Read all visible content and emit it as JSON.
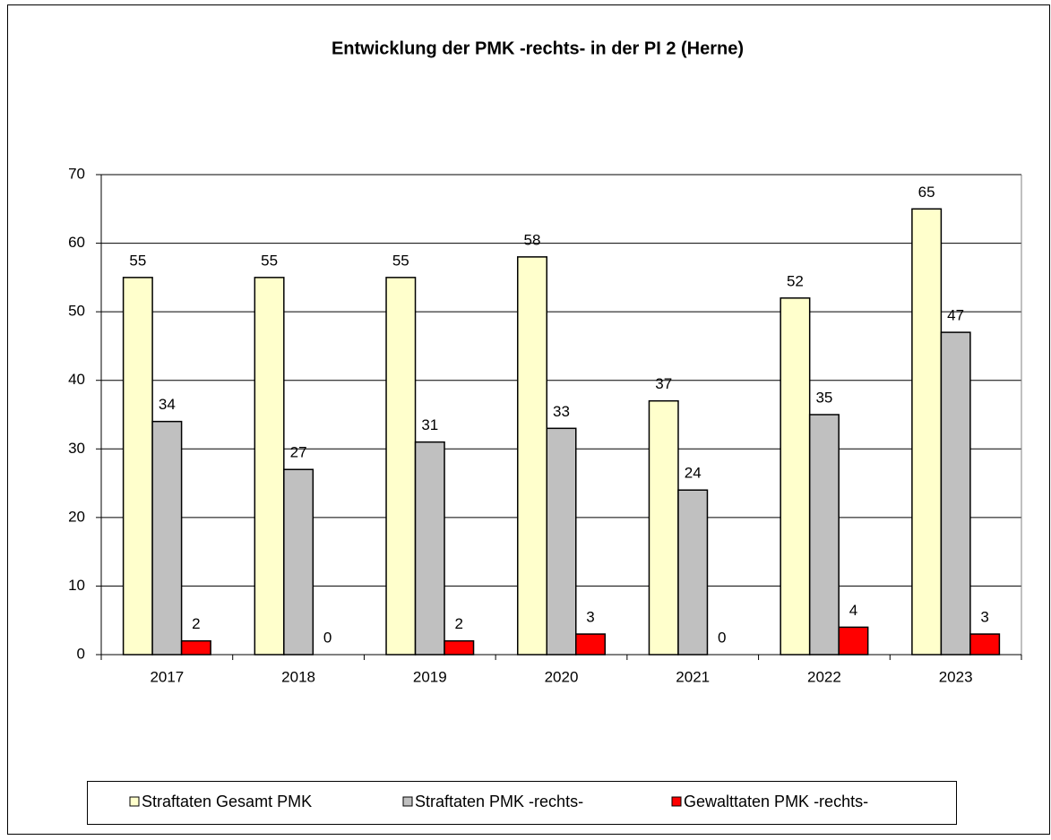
{
  "chart_data": {
    "type": "bar",
    "title": "Entwicklung der PMK -rechts- in der PI 2 (Herne)",
    "categories": [
      "2017",
      "2018",
      "2019",
      "2020",
      "2021",
      "2022",
      "2023"
    ],
    "series": [
      {
        "name": "Straftaten Gesamt PMK",
        "color": "#ffffcc",
        "values": [
          55,
          55,
          55,
          58,
          37,
          52,
          65
        ]
      },
      {
        "name": "Straftaten PMK -rechts-",
        "color": "#c0c0c0",
        "values": [
          34,
          27,
          31,
          33,
          24,
          35,
          47
        ]
      },
      {
        "name": "Gewalttaten PMK -rechts-",
        "color": "#ff0000",
        "values": [
          2,
          0,
          2,
          3,
          0,
          4,
          3
        ]
      }
    ],
    "ylim": [
      0,
      70
    ],
    "yticks": [
      0,
      10,
      20,
      30,
      40,
      50,
      60,
      70
    ],
    "grid": true,
    "legend": "bottom"
  }
}
